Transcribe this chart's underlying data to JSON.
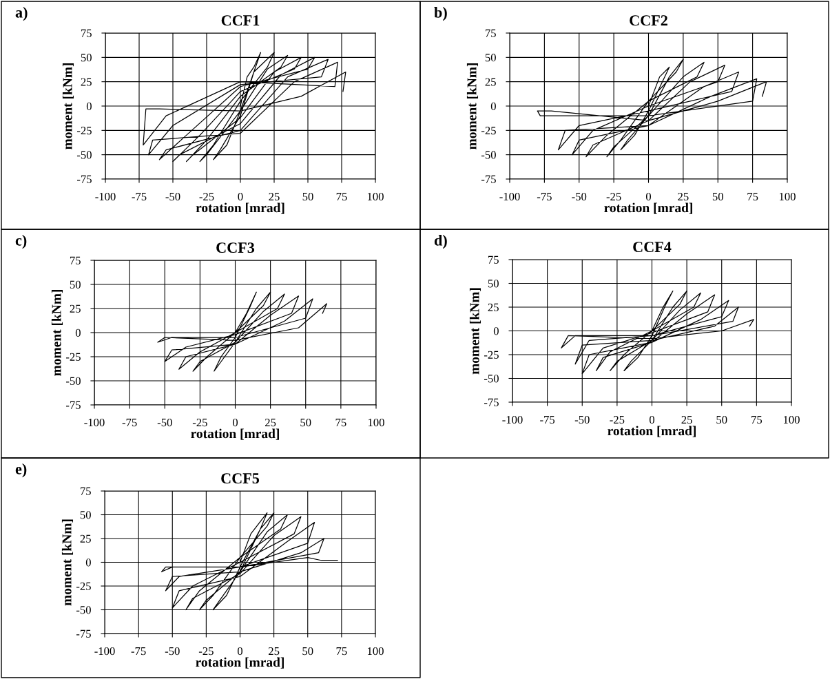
{
  "chart_data": [
    {
      "type": "line",
      "title": "CCF1",
      "annotations": [
        "a)"
      ],
      "xlabel": "rotation [mrad]",
      "ylabel": "moment [kNm]",
      "color": "#000000",
      "grid": true,
      "x": [
        0,
        5,
        10,
        15,
        10,
        0,
        -10,
        -20,
        -15,
        0,
        10,
        25,
        20,
        0,
        -20,
        -30,
        -25,
        0,
        20,
        35,
        30,
        0,
        -25,
        -40,
        -35,
        0,
        25,
        45,
        40,
        0,
        -30,
        -50,
        -45,
        0,
        30,
        55,
        50,
        0,
        -40,
        -60,
        -55,
        0,
        35,
        65,
        60,
        0,
        -50,
        -68,
        -65,
        0,
        40,
        72,
        70,
        0,
        -55,
        -72,
        -70,
        -60,
        0,
        45,
        78,
        76
      ],
      "values": [
        0,
        30,
        40,
        55,
        35,
        -5,
        -40,
        -55,
        -45,
        -10,
        35,
        55,
        40,
        5,
        -40,
        -57,
        -50,
        -5,
        38,
        52,
        40,
        10,
        -35,
        -57,
        -50,
        -12,
        35,
        50,
        38,
        15,
        -30,
        -57,
        -50,
        -18,
        32,
        50,
        38,
        20,
        -30,
        -55,
        -45,
        -25,
        30,
        48,
        30,
        22,
        -20,
        -50,
        -35,
        -28,
        25,
        45,
        20,
        25,
        -10,
        -40,
        -3,
        -3,
        -5,
        10,
        35,
        15
      ],
      "xlim": [
        -100,
        100
      ],
      "ylim": [
        -75,
        75
      ],
      "xticks": [
        -100,
        -75,
        -50,
        -25,
        0,
        25,
        50,
        75,
        100
      ],
      "yticks": [
        -75,
        -50,
        -25,
        0,
        25,
        50,
        75
      ]
    },
    {
      "type": "line",
      "title": "CCF2",
      "annotations": [
        "b)"
      ],
      "xlabel": "rotation [mrad]",
      "ylabel": "moment [kNm]",
      "color": "#000000",
      "grid": true,
      "x": [
        0,
        8,
        15,
        10,
        0,
        -10,
        -20,
        -15,
        0,
        15,
        25,
        20,
        0,
        -20,
        -30,
        -25,
        0,
        25,
        40,
        35,
        0,
        -30,
        -45,
        -40,
        0,
        30,
        55,
        50,
        0,
        -40,
        -55,
        -50,
        0,
        40,
        65,
        60,
        0,
        -50,
        -65,
        -60,
        0,
        45,
        78,
        75,
        0,
        -60,
        -78,
        -80,
        -70,
        0,
        50,
        85,
        82
      ],
      "values": [
        0,
        30,
        40,
        25,
        -5,
        -30,
        -45,
        -35,
        -10,
        30,
        48,
        35,
        5,
        -35,
        -52,
        -42,
        -10,
        30,
        45,
        30,
        5,
        -30,
        -52,
        -40,
        -15,
        25,
        42,
        25,
        0,
        -25,
        -50,
        -35,
        -20,
        20,
        35,
        15,
        -5,
        -20,
        -45,
        -25,
        -20,
        10,
        28,
        5,
        -10,
        -10,
        -10,
        -5,
        -5,
        -15,
        5,
        25,
        10
      ],
      "xlim": [
        -100,
        100
      ],
      "ylim": [
        -75,
        75
      ],
      "xticks": [
        -100,
        -75,
        -50,
        -25,
        0,
        25,
        50,
        75,
        100
      ],
      "yticks": [
        -75,
        -50,
        -25,
        0,
        25,
        50,
        75
      ]
    },
    {
      "type": "line",
      "title": "CCF3",
      "annotations": [
        "c)"
      ],
      "xlabel": "rotation [mrad]",
      "ylabel": "moment [kNm]",
      "color": "#000000",
      "grid": true,
      "x": [
        0,
        8,
        15,
        10,
        0,
        -10,
        -15,
        -10,
        0,
        15,
        25,
        20,
        0,
        -20,
        -30,
        -25,
        0,
        20,
        35,
        30,
        0,
        -25,
        -40,
        -35,
        0,
        25,
        45,
        40,
        0,
        -35,
        -50,
        -45,
        0,
        35,
        55,
        50,
        0,
        -45,
        -55,
        -50,
        0,
        45,
        65,
        62
      ],
      "values": [
        0,
        20,
        42,
        25,
        -5,
        -25,
        -40,
        -30,
        -10,
        25,
        42,
        28,
        0,
        -25,
        -40,
        -30,
        -10,
        22,
        40,
        25,
        0,
        -20,
        -38,
        -25,
        -12,
        18,
        38,
        20,
        -2,
        -15,
        -30,
        -18,
        -12,
        12,
        35,
        15,
        -5,
        -5,
        -10,
        -5,
        -8,
        5,
        30,
        20
      ],
      "xlim": [
        -100,
        100
      ],
      "ylim": [
        -75,
        75
      ],
      "xticks": [
        -100,
        -75,
        -50,
        -25,
        0,
        25,
        50,
        75,
        100
      ],
      "yticks": [
        -75,
        -50,
        -25,
        0,
        25,
        50,
        75
      ]
    },
    {
      "type": "line",
      "title": "CCF4",
      "annotations": [
        "d)"
      ],
      "xlabel": "rotation [mrad]",
      "ylabel": "moment [kNm]",
      "color": "#000000",
      "grid": true,
      "x": [
        0,
        8,
        15,
        10,
        0,
        -10,
        -20,
        -15,
        0,
        15,
        25,
        20,
        0,
        -20,
        -30,
        -25,
        0,
        20,
        35,
        30,
        0,
        -30,
        -40,
        -35,
        0,
        25,
        45,
        40,
        0,
        -35,
        -50,
        -45,
        0,
        35,
        55,
        50,
        0,
        -45,
        -55,
        -50,
        0,
        45,
        62,
        58,
        0,
        -55,
        -65,
        -60,
        0,
        50,
        73,
        70
      ],
      "values": [
        0,
        25,
        42,
        28,
        -5,
        -28,
        -42,
        -32,
        -10,
        25,
        42,
        28,
        0,
        -25,
        -42,
        -32,
        -10,
        22,
        40,
        25,
        0,
        -22,
        -42,
        -28,
        -12,
        18,
        38,
        20,
        -2,
        -18,
        -45,
        -25,
        -12,
        12,
        32,
        15,
        -5,
        -10,
        -35,
        -15,
        -10,
        5,
        25,
        10,
        -5,
        -5,
        -18,
        -5,
        -8,
        0,
        12,
        5
      ],
      "xlim": [
        -100,
        100
      ],
      "ylim": [
        -75,
        75
      ],
      "xticks": [
        -100,
        -75,
        -50,
        -25,
        0,
        25,
        50,
        75,
        100
      ],
      "yticks": [
        -75,
        -50,
        -25,
        0,
        25,
        50,
        75
      ]
    },
    {
      "type": "line",
      "title": "CCF5",
      "annotations": [
        "e)"
      ],
      "xlabel": "rotation [mrad]",
      "ylabel": "moment [kNm]",
      "color": "#000000",
      "grid": true,
      "x": [
        0,
        8,
        20,
        15,
        0,
        -10,
        -20,
        -15,
        0,
        15,
        25,
        20,
        0,
        -20,
        -30,
        -25,
        0,
        20,
        35,
        30,
        0,
        -30,
        -40,
        -35,
        0,
        25,
        45,
        40,
        0,
        -35,
        -50,
        -45,
        0,
        35,
        55,
        50,
        0,
        -45,
        -55,
        -50,
        0,
        45,
        62,
        58,
        0,
        -55,
        -58,
        -50,
        0,
        50,
        60,
        72
      ],
      "values": [
        0,
        30,
        52,
        35,
        -5,
        -35,
        -50,
        -40,
        -10,
        35,
        52,
        38,
        5,
        -35,
        -50,
        -40,
        -10,
        32,
        50,
        35,
        5,
        -30,
        -50,
        -38,
        -12,
        28,
        48,
        30,
        0,
        -25,
        -48,
        -30,
        -15,
        22,
        42,
        20,
        -5,
        -15,
        -30,
        -15,
        -10,
        10,
        25,
        10,
        -5,
        -5,
        -10,
        -5,
        -5,
        5,
        2,
        2
      ],
      "xlim": [
        -100,
        100
      ],
      "ylim": [
        -75,
        75
      ],
      "xticks": [
        -100,
        -75,
        -50,
        -25,
        0,
        25,
        50,
        75,
        100
      ],
      "yticks": [
        -75,
        -50,
        -25,
        0,
        25,
        50,
        75
      ]
    }
  ]
}
